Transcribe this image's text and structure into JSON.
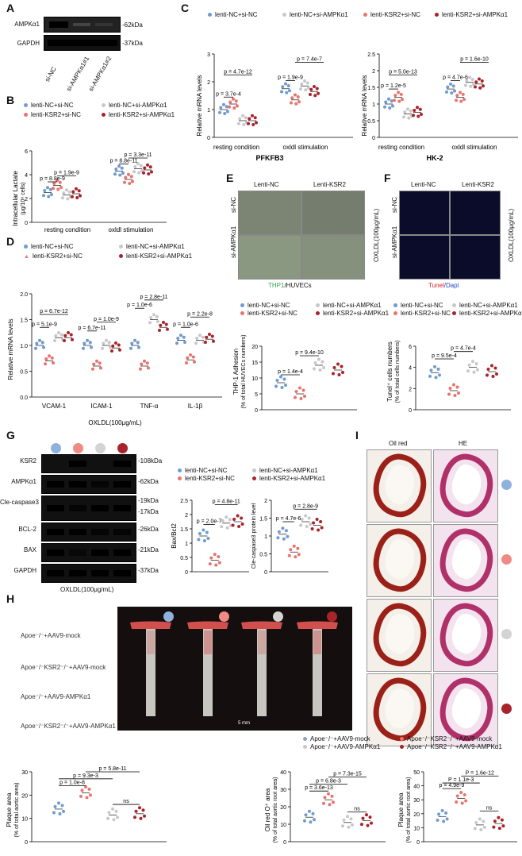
{
  "colors": {
    "nc_nc": "#6e9bd0",
    "ksr2_nc": "#e8746e",
    "nc_ampk": "#c8c8c8",
    "ksr2_ampk": "#a8232a"
  },
  "panels": {
    "A": "A",
    "B": "B",
    "C": "C",
    "D": "D",
    "E": "E",
    "F": "F",
    "G": "G",
    "H": "H",
    "I": "I"
  },
  "blotA": {
    "rows": [
      "AMPKα1",
      "GAPDH"
    ],
    "kda": [
      "-62kDa",
      "-37kDa"
    ],
    "lanes": [
      "si-NC",
      "si-AMPKα1#1",
      "si-AMPKα1#2"
    ]
  },
  "legend4": {
    "nc_nc": "lenti-NC+si-NC",
    "nc_ampk": "lenti-NC+si-AMPKα1",
    "ksr2_nc": "lenti-KSR2+si-NC",
    "ksr2_ampk": "lenti-KSR2+si-AMPKα1"
  },
  "panelB": {
    "ylabel": "Intracellular Lactate",
    "yunit": "(μg/10⁶ cells)",
    "x": [
      "resting condition",
      "oxldl stimulation"
    ],
    "p": [
      "p = 8.8e-9",
      "p = 1.9e-9",
      "p = 8.8e-11",
      "p = 3.3e-11"
    ]
  },
  "panelC": {
    "ylabel": "Relative mRNA levels",
    "x": [
      "resting condition",
      "oxldl stimulation"
    ],
    "title1": "PFKFB3",
    "title2": "HK-2",
    "p1": [
      "p = 3.7e-4",
      "p = 4.7e-12",
      "p = 1.9e-9",
      "p = 7.4e-7"
    ],
    "p2": [
      "p = 1.2e-5",
      "p = 5.0e-13",
      "p = 4.7e-6",
      "p = 1.6e-10"
    ]
  },
  "panelD": {
    "ylabel": "Relative mRNA levels",
    "x": [
      "VCAM-1",
      "ICAM-1",
      "TNF-α",
      "IL-1β"
    ],
    "xlabel": "OXLDL(100μg/mL)",
    "p": [
      "p = 5.1e-9",
      "p = 6.7e-12",
      "p = 6.7e-11",
      "p = 1.0e-9",
      "p = 1.0e-6",
      "p = 2.8e-11",
      "p = 1.0e-6",
      "p = 2.2e-8"
    ],
    "yticks": [
      "0.0",
      "0.5",
      "1.0",
      "1.5",
      "2.0"
    ]
  },
  "panelE": {
    "cols": [
      "Lenti-NC",
      "Lenti-KSR2"
    ],
    "rows": [
      "si-NC",
      "si-AMPKα1"
    ],
    "side": "OXLDL(100μg/mL)",
    "caption_a": "THP1",
    "caption_b": "/HUVECs",
    "ylabel": "THP-1 Adhesion",
    "yunit": "(% of total HUVECs numbers)",
    "p": [
      "p = 1.4e-4",
      "p = 9.4e-10"
    ],
    "yticks": [
      "0",
      "5",
      "10",
      "15",
      "20"
    ]
  },
  "panelF": {
    "cols": [
      "Lenti-NC",
      "Lenti-KSR2"
    ],
    "rows": [
      "si-NC",
      "si-AMPKα1"
    ],
    "side": "OXLDL(100μg/mL)",
    "caption_a": "Tunel",
    "caption_b": "/Dapi",
    "ylabel": "Tunel⁺ cells numbers",
    "yunit": "(% of total cells numbers)",
    "p": [
      "p = 9.5e-4",
      "p = 4.7e-4"
    ],
    "yticks": [
      "0",
      "2",
      "4",
      "6"
    ]
  },
  "panelG": {
    "rows": [
      "KSR2",
      "AMPKα1",
      "Cle-caspase3",
      "BCL-2",
      "BAX",
      "GAPDH"
    ],
    "kda": [
      "-108kDa",
      "-62kDa",
      "-19kDa",
      "-17kDa",
      "-26kDa",
      "-21kDa",
      "-37kDa"
    ],
    "xlabel": "OXLDL(100μg/mL)",
    "y1": "Bax/Bcl2",
    "y2": "Cle-caspase3 protein level",
    "p1": [
      "p = 2.0e-7",
      "p = 4.8e-11"
    ],
    "p2": [
      "p = 4.7e-6",
      "p = 2.8e-9"
    ]
  },
  "panelH": {
    "groups": [
      "Apoe⁻/⁻+AAV9-mock",
      "Apoe⁻/⁻KSR2⁻/⁻+AAV9-mock",
      "Apoe⁻/⁻+AAV9-AMPKα1",
      "Apoe⁻/⁻KSR2⁻/⁻+AAV9-AMPKα1"
    ],
    "scale": "5 mm",
    "y1": "Plaque area",
    "y1u": "(% of total aortic area)",
    "y2": "Oil red O⁺ area",
    "y2u": "(% of total aortic root area)",
    "y3": "Plaque area",
    "y3u": "(% of total aortic root area)",
    "p1": [
      "p = 1.0e-8",
      "p = 9.3e-3",
      "p = 5.8e-11",
      "ns"
    ],
    "p2": [
      "p = 3.6e-13",
      "p = 6.8e-3",
      "p = 7.3e-15",
      "ns"
    ],
    "p3": [
      "p = 4.9e-9",
      "P = 1.1e-3",
      "P = 1.6e-12",
      "ns"
    ],
    "leg2": [
      "Apoe⁻/⁻+AAV9-mock",
      "Apoe⁻/⁻+AAV9-AMPKα1"
    ],
    "leg3": [
      "Apoe⁻/⁻KSR2⁻/⁻+AAV9-mock",
      "Apoe⁻/⁻KSR2⁻/⁻+AAV9-AMPKα1"
    ]
  },
  "panelI": {
    "cols": [
      "Oil red",
      "HE"
    ]
  },
  "chart_data": [
    {
      "type": "scatter",
      "title": "",
      "ylabel": "Intracellular Lactate (μg/10⁶ cells)",
      "ylim": [
        0,
        6
      ],
      "categories": [
        "resting condition",
        "oxldl stimulation"
      ],
      "series": [
        {
          "name": "lenti-NC+si-NC",
          "values": [
            2.5,
            4.3
          ]
        },
        {
          "name": "lenti-KSR2+si-NC",
          "values": [
            3.1,
            3.6
          ]
        },
        {
          "name": "lenti-NC+si-AMPKα1",
          "values": [
            2.3,
            4.5
          ]
        },
        {
          "name": "lenti-KSR2+si-AMPKα1",
          "values": [
            2.4,
            4.4
          ]
        }
      ]
    },
    {
      "type": "scatter",
      "title": "PFKFB3",
      "ylabel": "Relative mRNA levels",
      "ylim": [
        0,
        3
      ],
      "categories": [
        "resting condition",
        "oxldl stimulation"
      ],
      "series": [
        {
          "name": "lenti-NC+si-NC",
          "values": [
            1.0,
            1.75
          ]
        },
        {
          "name": "lenti-KSR2+si-NC",
          "values": [
            1.2,
            1.35
          ]
        },
        {
          "name": "lenti-NC+si-AMPKα1",
          "values": [
            0.6,
            1.85
          ]
        },
        {
          "name": "lenti-KSR2+si-AMPKα1",
          "values": [
            0.6,
            1.65
          ]
        }
      ]
    },
    {
      "type": "scatter",
      "title": "HK-2",
      "ylabel": "Relative mRNA levels",
      "ylim": [
        0,
        2.5
      ],
      "categories": [
        "resting condition",
        "oxldl stimulation"
      ],
      "series": [
        {
          "name": "lenti-NC+si-NC",
          "values": [
            1.0,
            1.45
          ]
        },
        {
          "name": "lenti-KSR2+si-NC",
          "values": [
            1.2,
            1.2
          ]
        },
        {
          "name": "lenti-NC+si-AMPKα1",
          "values": [
            0.7,
            1.65
          ]
        },
        {
          "name": "lenti-KSR2+si-AMPKα1",
          "values": [
            0.75,
            1.6
          ]
        }
      ]
    },
    {
      "type": "scatter",
      "title": "",
      "ylabel": "Relative mRNA levels",
      "ylim": [
        0,
        2
      ],
      "categories": [
        "VCAM-1",
        "ICAM-1",
        "TNF-α",
        "IL-1β"
      ],
      "series": [
        {
          "name": "lenti-NC+si-NC",
          "values": [
            1.0,
            1.0,
            1.0,
            1.1
          ]
        },
        {
          "name": "lenti-KSR2+si-NC",
          "values": [
            0.7,
            0.6,
            0.6,
            0.72
          ]
        },
        {
          "name": "lenti-NC+si-AMPKα1",
          "values": [
            1.15,
            1.0,
            1.5,
            1.1
          ]
        },
        {
          "name": "lenti-KSR2+si-AMPKα1",
          "values": [
            1.15,
            0.95,
            1.35,
            1.12
          ]
        }
      ]
    },
    {
      "type": "scatter",
      "title": "",
      "ylabel": "THP-1 Adhesion (% of total HUVECs numbers)",
      "ylim": [
        0,
        20
      ],
      "categories": [
        "lenti-NC+si-NC",
        "lenti-KSR2+si-NC",
        "lenti-NC+si-AMPKα1",
        "lenti-KSR2+si-AMPKα1"
      ],
      "values": [
        8.5,
        5.0,
        14.0,
        12.5
      ]
    },
    {
      "type": "scatter",
      "title": "",
      "ylabel": "Tunel⁺ cells numbers (% of total cells numbers)",
      "ylim": [
        0,
        6
      ],
      "categories": [
        "lenti-NC+si-NC",
        "lenti-KSR2+si-NC",
        "lenti-NC+si-AMPKα1",
        "lenti-KSR2+si-AMPKα1"
      ],
      "values": [
        3.5,
        1.8,
        4.0,
        3.6
      ]
    },
    {
      "type": "scatter",
      "title": "",
      "ylabel": "Bax/Bcl2",
      "ylim": [
        0,
        2.5
      ],
      "categories": [
        "lenti-NC+si-NC",
        "lenti-KSR2+si-NC",
        "lenti-NC+si-AMPKα1",
        "lenti-KSR2+si-AMPKα1"
      ],
      "values": [
        1.25,
        0.4,
        1.7,
        1.75
      ]
    },
    {
      "type": "scatter",
      "title": "",
      "ylabel": "Cle-caspase3 protein level",
      "ylim": [
        0,
        2.0
      ],
      "categories": [
        "lenti-NC+si-NC",
        "lenti-KSR2+si-NC",
        "lenti-NC+si-AMPKα1",
        "lenti-KSR2+si-AMPKα1"
      ],
      "values": [
        1.05,
        0.55,
        1.4,
        1.3
      ]
    },
    {
      "type": "scatter",
      "title": "",
      "ylabel": "Plaque area (% of total aortic area)",
      "ylim": [
        0,
        30
      ],
      "categories": [
        "Apoe⁻/⁻+AAV9-mock",
        "Apoe⁻/⁻KSR2⁻/⁻+AAV9-mock",
        "Apoe⁻/⁻+AAV9-AMPKα1",
        "Apoe⁻/⁻KSR2⁻/⁻+AAV9-AMPKα1"
      ],
      "values": [
        14,
        21,
        11.5,
        12
      ]
    },
    {
      "type": "scatter",
      "title": "",
      "ylabel": "Oil red O⁺ area (% of total aortic root area)",
      "ylim": [
        0,
        40
      ],
      "categories": [
        "Apoe⁻/⁻+AAV9-mock",
        "Apoe⁻/⁻KSR2⁻/⁻+AAV9-mock",
        "Apoe⁻/⁻+AAV9-AMPKα1",
        "Apoe⁻/⁻KSR2⁻/⁻+AAV9-AMPKα1"
      ],
      "values": [
        14,
        24,
        11,
        12
      ]
    },
    {
      "type": "scatter",
      "title": "",
      "ylabel": "Plaque area (% of total aortic root area)",
      "ylim": [
        0,
        50
      ],
      "categories": [
        "Apoe⁻/⁻+AAV9-mock",
        "Apoe⁻/⁻KSR2⁻/⁻+AAV9-mock",
        "Apoe⁻/⁻+AAV9-AMPKα1",
        "Apoe⁻/⁻KSR2⁻/⁻+AAV9-AMPKα1"
      ],
      "values": [
        18,
        31,
        12,
        13
      ]
    }
  ]
}
